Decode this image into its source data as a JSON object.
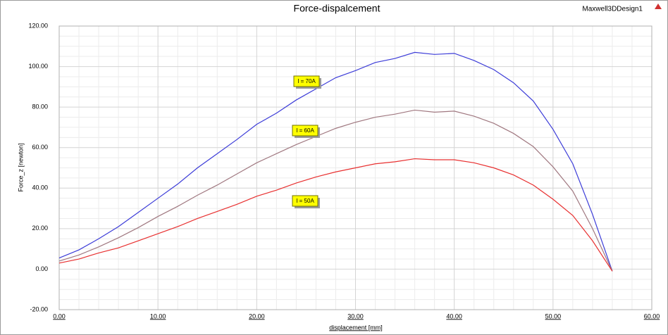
{
  "chart_data": {
    "type": "line",
    "title": "Force-dispalcement",
    "design_name": "Maxwell3DDesign1",
    "x_label": "displacement [mm]",
    "y_label": "Force_z [newton]",
    "x": [
      0,
      2,
      4,
      6,
      8,
      10,
      12,
      14,
      16,
      18,
      20,
      22,
      24,
      26,
      28,
      30,
      32,
      34,
      36,
      38,
      40,
      42,
      44,
      46,
      48,
      50,
      52,
      54,
      56
    ],
    "series": [
      {
        "name": "I = 70A",
        "color": "#3c3cd8",
        "values": [
          5.5,
          9.5,
          15,
          21,
          28,
          35,
          42,
          50,
          57,
          64,
          71.5,
          77,
          83.5,
          89,
          94.5,
          98,
          102,
          104,
          107,
          106,
          106.5,
          103,
          98.5,
          92,
          83,
          69,
          52,
          27,
          -1
        ]
      },
      {
        "name": "I = 60A",
        "color": "#a07880",
        "values": [
          4,
          7,
          11,
          15.5,
          20.5,
          26,
          31,
          36.5,
          41.5,
          47,
          52.5,
          57,
          61.5,
          65.5,
          69.5,
          72.5,
          75,
          76.5,
          78.5,
          77.5,
          78,
          75.5,
          72,
          67,
          60.5,
          50.5,
          38.5,
          20,
          -1
        ]
      },
      {
        "name": "I = 50A",
        "color": "#e83030",
        "values": [
          3,
          5,
          8,
          10.5,
          14,
          17.5,
          21,
          25,
          28.5,
          32,
          36,
          39,
          42.5,
          45.5,
          48,
          50,
          52,
          53,
          54.5,
          54,
          54,
          52.5,
          50,
          46.5,
          41.5,
          34.5,
          26.5,
          14,
          -1
        ]
      }
    ],
    "xlim": [
      0,
      60
    ],
    "xticks": [
      {
        "value": 0,
        "label": "0.00"
      },
      {
        "value": 10,
        "label": "10.00"
      },
      {
        "value": 20,
        "label": "20.00"
      },
      {
        "value": 30,
        "label": "30.00"
      },
      {
        "value": 40,
        "label": "40.00"
      },
      {
        "value": 50,
        "label": "50.00"
      },
      {
        "value": 60,
        "label": "60.00"
      }
    ],
    "ylim": [
      -20,
      120
    ],
    "yticks": [
      {
        "value": -20,
        "label": "-20.00"
      },
      {
        "value": 0,
        "label": "0.00"
      },
      {
        "value": 20,
        "label": "20.00"
      },
      {
        "value": 40,
        "label": "40.00"
      },
      {
        "value": 60,
        "label": "60.00"
      },
      {
        "value": 80,
        "label": "80.00"
      },
      {
        "value": 100,
        "label": "100.00"
      },
      {
        "value": 120,
        "label": "120.00"
      }
    ],
    "grid": true
  }
}
